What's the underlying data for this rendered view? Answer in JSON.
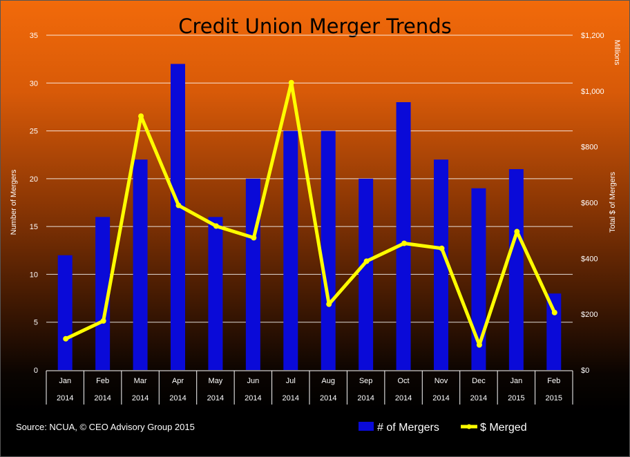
{
  "chart_data": {
    "type": "bar",
    "title": "Credit Union Merger Trends",
    "categories": [
      {
        "month": "Jan",
        "year": "2014"
      },
      {
        "month": "Feb",
        "year": "2014"
      },
      {
        "month": "Mar",
        "year": "2014"
      },
      {
        "month": "Apr",
        "year": "2014"
      },
      {
        "month": "May",
        "year": "2014"
      },
      {
        "month": "Jun",
        "year": "2014"
      },
      {
        "month": "Jul",
        "year": "2014"
      },
      {
        "month": "Aug",
        "year": "2014"
      },
      {
        "month": "Sep",
        "year": "2014"
      },
      {
        "month": "Oct",
        "year": "2014"
      },
      {
        "month": "Nov",
        "year": "2014"
      },
      {
        "month": "Dec",
        "year": "2014"
      },
      {
        "month": "Jan",
        "year": "2015"
      },
      {
        "month": "Feb",
        "year": "2015"
      }
    ],
    "series": [
      {
        "name": "# of Mergers",
        "type": "bar",
        "axis": "left",
        "color": "#0a0ad8",
        "values": [
          12,
          16,
          22,
          32,
          16,
          20,
          25,
          25,
          20,
          28,
          22,
          19,
          21,
          8
        ]
      },
      {
        "name": "$ Merged",
        "type": "line",
        "axis": "right",
        "color": "#ffff00",
        "values": [
          112,
          176,
          910,
          590,
          516,
          474,
          1030,
          236,
          390,
          454,
          436,
          90,
          496,
          206
        ]
      }
    ],
    "ylabel": "Number of Mergers",
    "ylim": [
      0,
      35
    ],
    "yticks": [
      "0",
      "5",
      "10",
      "15",
      "20",
      "25",
      "30",
      "35"
    ],
    "y2label": "Total $ of Mergers",
    "y2unit": "Millions",
    "y2lim": [
      0,
      1200
    ],
    "y2ticks": [
      "$0",
      "$200",
      "$400",
      "$600",
      "$800",
      "$1,000",
      "$1,200"
    ],
    "grid": true,
    "legend": "bottom-right"
  },
  "source": "Source: NCUA, © CEO Advisory Group 2015",
  "colors": {
    "bar": "#0a0ad8",
    "line": "#ffff00"
  }
}
